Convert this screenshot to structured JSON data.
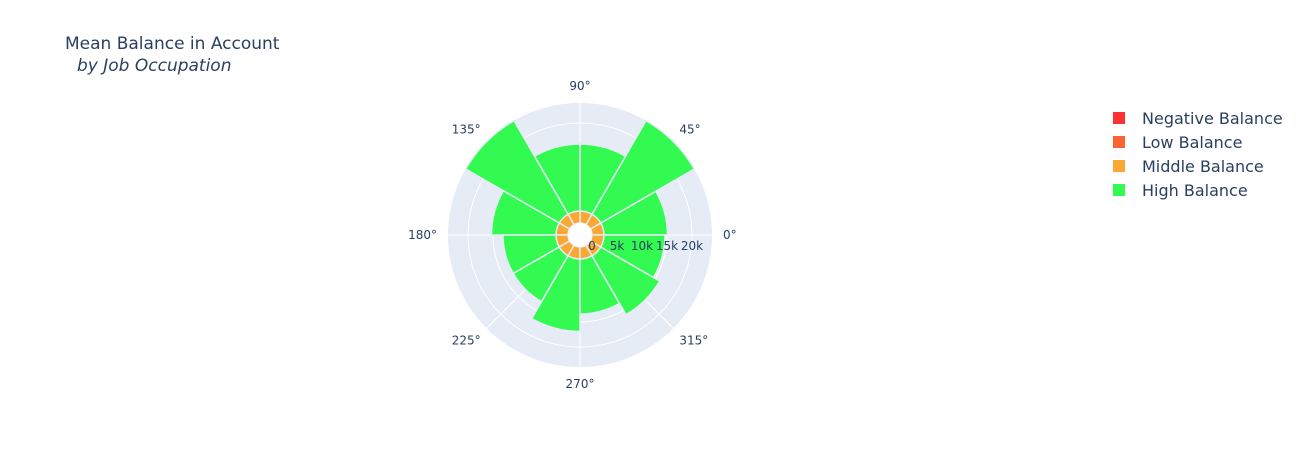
{
  "chart_data": {
    "type": "barpolar",
    "title": "Mean Balance in Account",
    "subtitle": "by Job Occupation",
    "radial_axis": {
      "range": [
        0,
        24000
      ],
      "tickvals": [
        0,
        5000,
        10000,
        15000,
        20000
      ],
      "ticktext": [
        "0",
        "5k",
        "10k",
        "15k",
        "20k"
      ]
    },
    "angular_axis": {
      "tickvals": [
        0,
        45,
        90,
        135,
        180,
        225,
        270,
        315
      ],
      "ticktext": [
        "0°",
        "45°",
        "90°",
        "135°",
        "180°",
        "225°",
        "270°",
        "315°"
      ]
    },
    "theta": [
      15,
      45,
      75,
      105,
      135,
      165,
      195,
      225,
      255,
      285,
      315,
      345
    ],
    "bar_width_deg": 30,
    "series": [
      {
        "name": "Negative Balance",
        "color": "#fa3232",
        "values": [
          0,
          0,
          0,
          0,
          0,
          0,
          0,
          0,
          0,
          0,
          0,
          0
        ]
      },
      {
        "name": "Low Balance",
        "color": "#fa6432",
        "values": [
          0,
          0,
          0,
          0,
          0,
          0,
          0,
          0,
          0,
          0,
          0,
          0
        ]
      },
      {
        "name": "Middle Balance",
        "color": "#faa832",
        "values": [
          2400,
          2400,
          2400,
          2400,
          2400,
          2400,
          2400,
          2400,
          2400,
          2400,
          2400,
          2400
        ]
      },
      {
        "name": "High Balance",
        "color": "#32fa50",
        "values": [
          12700,
          21800,
          13400,
          13400,
          22900,
          12900,
          10600,
          10600,
          14500,
          11000,
          13600,
          12200
        ]
      }
    ]
  },
  "legend": {
    "items": [
      {
        "label": "Negative Balance",
        "color": "#fa3232"
      },
      {
        "label": "Low Balance",
        "color": "#fa6432"
      },
      {
        "label": "Middle Balance",
        "color": "#faa832"
      },
      {
        "label": "High Balance",
        "color": "#32fa50"
      }
    ]
  }
}
